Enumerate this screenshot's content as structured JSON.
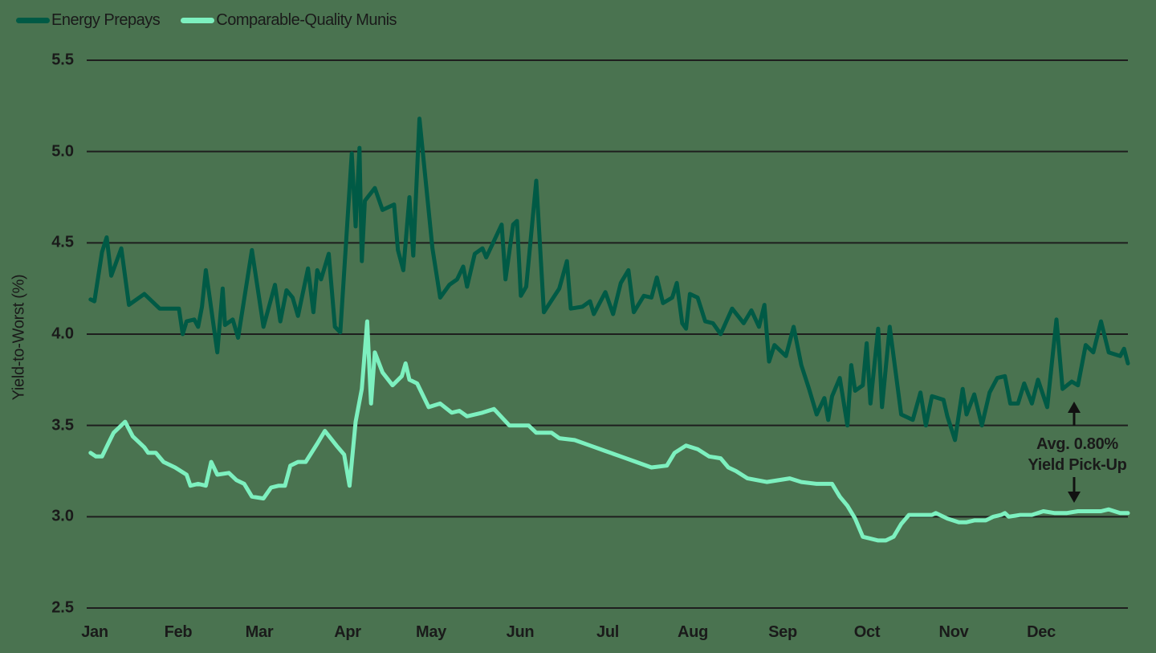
{
  "legend": {
    "items": [
      {
        "label": "Energy Prepays",
        "color": "#005a45"
      },
      {
        "label": "Comparable-Quality Munis",
        "color": "#7df0bf"
      }
    ]
  },
  "axis": {
    "ylabel": "Yield-to-Worst (%)",
    "yticks": [
      "5.5",
      "5.0",
      "4.5",
      "4.0",
      "3.5",
      "3.0",
      "2.5"
    ],
    "xticks": [
      "Jan",
      "Feb",
      "Mar",
      "Apr",
      "May",
      "Jun",
      "Jul",
      "Aug",
      "Sep",
      "Oct",
      "Nov",
      "Dec"
    ]
  },
  "annotation": {
    "line1": "Avg. 0.80%",
    "line2": "Yield Pick-Up"
  },
  "colors": {
    "background": "#4a7350",
    "grid": "#1e1e1e",
    "energy_prepays": "#005a45",
    "munis": "#7df0bf"
  },
  "chart_data": {
    "type": "line",
    "title": "",
    "xlabel": "",
    "ylabel": "Yield-to-Worst (%)",
    "ylim": [
      2.5,
      5.5
    ],
    "yticks": [
      2.5,
      3.0,
      3.5,
      4.0,
      4.5,
      5.0,
      5.5
    ],
    "grid": "horizontal",
    "legend_position": "top-left",
    "x_categories": [
      "Jan",
      "Feb",
      "Mar",
      "Apr",
      "May",
      "Jun",
      "Jul",
      "Aug",
      "Sep",
      "Oct",
      "Nov",
      "Dec"
    ],
    "x_note": "x values are fractional months (0 = start of Jan, 12 = end of Dec)",
    "annotations": [
      {
        "text": "Avg. 0.80% Yield Pick-Up",
        "x": 11.2,
        "arrows": [
          "up to Energy Prepays",
          "down to Munis"
        ]
      }
    ],
    "series": [
      {
        "name": "Energy Prepays",
        "color": "#005a45",
        "points": [
          [
            0.05,
            4.19
          ],
          [
            0.1,
            4.18
          ],
          [
            0.2,
            4.45
          ],
          [
            0.26,
            4.53
          ],
          [
            0.32,
            4.32
          ],
          [
            0.45,
            4.47
          ],
          [
            0.55,
            4.16
          ],
          [
            0.75,
            4.22
          ],
          [
            0.95,
            4.14
          ],
          [
            1.1,
            4.14
          ],
          [
            1.2,
            4.14
          ],
          [
            1.25,
            4.0
          ],
          [
            1.3,
            4.07
          ],
          [
            1.4,
            4.08
          ],
          [
            1.45,
            4.04
          ],
          [
            1.5,
            4.15
          ],
          [
            1.55,
            4.35
          ],
          [
            1.6,
            4.2
          ],
          [
            1.7,
            3.9
          ],
          [
            1.77,
            4.25
          ],
          [
            1.8,
            4.05
          ],
          [
            1.9,
            4.08
          ],
          [
            1.97,
            3.98
          ],
          [
            2.15,
            4.46
          ],
          [
            2.3,
            4.04
          ],
          [
            2.45,
            4.27
          ],
          [
            2.52,
            4.07
          ],
          [
            2.6,
            4.24
          ],
          [
            2.68,
            4.2
          ],
          [
            2.75,
            4.1
          ],
          [
            2.88,
            4.36
          ],
          [
            2.95,
            4.12
          ],
          [
            3.0,
            4.35
          ],
          [
            3.05,
            4.3
          ],
          [
            3.15,
            4.44
          ],
          [
            3.23,
            4.04
          ],
          [
            3.3,
            4.01
          ],
          [
            3.45,
            4.99
          ],
          [
            3.5,
            4.59
          ],
          [
            3.55,
            5.02
          ],
          [
            3.58,
            4.4
          ],
          [
            3.62,
            4.73
          ],
          [
            3.75,
            4.8
          ],
          [
            3.85,
            4.68
          ],
          [
            4.0,
            4.71
          ],
          [
            4.05,
            4.46
          ],
          [
            4.12,
            4.35
          ],
          [
            4.2,
            4.75
          ],
          [
            4.25,
            4.43
          ],
          [
            4.33,
            5.18
          ],
          [
            4.5,
            4.47
          ],
          [
            4.6,
            4.2
          ],
          [
            4.72,
            4.27
          ],
          [
            4.82,
            4.3
          ],
          [
            4.9,
            4.37
          ],
          [
            4.95,
            4.26
          ],
          [
            5.05,
            4.44
          ],
          [
            5.15,
            4.47
          ],
          [
            5.2,
            4.42
          ],
          [
            5.4,
            4.6
          ],
          [
            5.45,
            4.3
          ],
          [
            5.55,
            4.6
          ],
          [
            5.6,
            4.62
          ],
          [
            5.65,
            4.21
          ],
          [
            5.72,
            4.26
          ],
          [
            5.85,
            4.84
          ],
          [
            5.95,
            4.12
          ],
          [
            6.15,
            4.25
          ],
          [
            6.25,
            4.4
          ],
          [
            6.3,
            4.14
          ],
          [
            6.45,
            4.15
          ],
          [
            6.55,
            4.18
          ],
          [
            6.6,
            4.11
          ],
          [
            6.75,
            4.23
          ],
          [
            6.85,
            4.11
          ],
          [
            6.95,
            4.28
          ],
          [
            7.05,
            4.35
          ],
          [
            7.12,
            4.12
          ],
          [
            7.25,
            4.21
          ],
          [
            7.35,
            4.2
          ],
          [
            7.42,
            4.31
          ],
          [
            7.5,
            4.17
          ],
          [
            7.62,
            4.2
          ],
          [
            7.68,
            4.28
          ],
          [
            7.75,
            4.06
          ],
          [
            7.8,
            4.03
          ],
          [
            7.85,
            4.22
          ],
          [
            7.95,
            4.2
          ],
          [
            8.05,
            4.07
          ],
          [
            8.15,
            4.06
          ],
          [
            8.25,
            4.0
          ],
          [
            8.4,
            4.14
          ],
          [
            8.55,
            4.06
          ],
          [
            8.65,
            4.13
          ],
          [
            8.75,
            4.04
          ],
          [
            8.82,
            4.16
          ],
          [
            8.88,
            3.85
          ],
          [
            8.95,
            3.94
          ],
          [
            9.1,
            3.88
          ],
          [
            9.2,
            4.04
          ],
          [
            9.3,
            3.83
          ],
          [
            9.4,
            3.7
          ],
          [
            9.5,
            3.56
          ],
          [
            9.6,
            3.65
          ],
          [
            9.65,
            3.53
          ],
          [
            9.7,
            3.66
          ],
          [
            9.8,
            3.76
          ],
          [
            9.9,
            3.5
          ],
          [
            9.95,
            3.83
          ],
          [
            10.0,
            3.69
          ],
          [
            10.1,
            3.72
          ],
          [
            10.15,
            3.95
          ],
          [
            10.2,
            3.62
          ],
          [
            10.3,
            4.03
          ],
          [
            10.35,
            3.6
          ],
          [
            10.45,
            4.04
          ],
          [
            10.6,
            3.56
          ],
          [
            10.75,
            3.53
          ],
          [
            10.85,
            3.68
          ],
          [
            10.92,
            3.5
          ],
          [
            11.0,
            3.66
          ],
          [
            11.15,
            3.64
          ],
          [
            11.2,
            3.55
          ],
          [
            11.3,
            3.42
          ],
          [
            11.4,
            3.7
          ],
          [
            11.45,
            3.56
          ],
          [
            11.55,
            3.67
          ],
          [
            11.65,
            3.5
          ],
          [
            11.75,
            3.68
          ],
          [
            11.85,
            3.76
          ],
          [
            11.95,
            3.77
          ],
          [
            12.02,
            3.62
          ],
          [
            12.12,
            3.62
          ],
          [
            12.2,
            3.73
          ],
          [
            12.3,
            3.62
          ],
          [
            12.38,
            3.75
          ],
          [
            12.5,
            3.6
          ],
          [
            12.62,
            4.08
          ],
          [
            12.7,
            3.7
          ],
          [
            12.82,
            3.74
          ],
          [
            12.9,
            3.72
          ],
          [
            13.0,
            3.94
          ],
          [
            13.1,
            3.9
          ],
          [
            13.2,
            4.07
          ],
          [
            13.3,
            3.9
          ],
          [
            13.45,
            3.88
          ],
          [
            13.5,
            3.92
          ],
          [
            13.55,
            3.84
          ]
        ]
      },
      {
        "name": "Comparable-Quality Munis",
        "color": "#7df0bf",
        "points": [
          [
            0.05,
            3.35
          ],
          [
            0.12,
            3.33
          ],
          [
            0.2,
            3.33
          ],
          [
            0.28,
            3.4
          ],
          [
            0.35,
            3.46
          ],
          [
            0.5,
            3.52
          ],
          [
            0.6,
            3.44
          ],
          [
            0.75,
            3.38
          ],
          [
            0.8,
            3.35
          ],
          [
            0.9,
            3.35
          ],
          [
            1.0,
            3.3
          ],
          [
            1.15,
            3.27
          ],
          [
            1.3,
            3.23
          ],
          [
            1.35,
            3.17
          ],
          [
            1.45,
            3.18
          ],
          [
            1.55,
            3.17
          ],
          [
            1.62,
            3.3
          ],
          [
            1.7,
            3.23
          ],
          [
            1.85,
            3.24
          ],
          [
            1.95,
            3.2
          ],
          [
            2.05,
            3.18
          ],
          [
            2.15,
            3.11
          ],
          [
            2.3,
            3.1
          ],
          [
            2.4,
            3.16
          ],
          [
            2.5,
            3.17
          ],
          [
            2.58,
            3.17
          ],
          [
            2.65,
            3.28
          ],
          [
            2.75,
            3.3
          ],
          [
            2.85,
            3.3
          ],
          [
            3.0,
            3.4
          ],
          [
            3.1,
            3.47
          ],
          [
            3.25,
            3.39
          ],
          [
            3.35,
            3.34
          ],
          [
            3.42,
            3.17
          ],
          [
            3.5,
            3.52
          ],
          [
            3.58,
            3.7
          ],
          [
            3.65,
            4.07
          ],
          [
            3.7,
            3.62
          ],
          [
            3.75,
            3.9
          ],
          [
            3.85,
            3.79
          ],
          [
            3.98,
            3.72
          ],
          [
            4.1,
            3.77
          ],
          [
            4.15,
            3.84
          ],
          [
            4.2,
            3.75
          ],
          [
            4.3,
            3.73
          ],
          [
            4.45,
            3.6
          ],
          [
            4.6,
            3.62
          ],
          [
            4.75,
            3.57
          ],
          [
            4.85,
            3.58
          ],
          [
            4.95,
            3.55
          ],
          [
            5.15,
            3.57
          ],
          [
            5.3,
            3.59
          ],
          [
            5.5,
            3.5
          ],
          [
            5.75,
            3.5
          ],
          [
            5.85,
            3.46
          ],
          [
            6.05,
            3.46
          ],
          [
            6.15,
            3.43
          ],
          [
            6.35,
            3.42
          ],
          [
            6.55,
            3.39
          ],
          [
            6.75,
            3.36
          ],
          [
            6.95,
            3.33
          ],
          [
            7.15,
            3.3
          ],
          [
            7.35,
            3.27
          ],
          [
            7.55,
            3.28
          ],
          [
            7.65,
            3.35
          ],
          [
            7.8,
            3.39
          ],
          [
            7.95,
            3.37
          ],
          [
            8.1,
            3.33
          ],
          [
            8.25,
            3.32
          ],
          [
            8.35,
            3.27
          ],
          [
            8.45,
            3.25
          ],
          [
            8.6,
            3.21
          ],
          [
            8.85,
            3.19
          ],
          [
            9.0,
            3.2
          ],
          [
            9.15,
            3.21
          ],
          [
            9.3,
            3.19
          ],
          [
            9.5,
            3.18
          ],
          [
            9.7,
            3.18
          ],
          [
            9.8,
            3.11
          ],
          [
            9.9,
            3.06
          ],
          [
            10.0,
            2.99
          ],
          [
            10.1,
            2.89
          ],
          [
            10.2,
            2.88
          ],
          [
            10.3,
            2.87
          ],
          [
            10.4,
            2.87
          ],
          [
            10.5,
            2.89
          ],
          [
            10.6,
            2.96
          ],
          [
            10.7,
            3.01
          ],
          [
            11.0,
            3.01
          ],
          [
            11.05,
            3.02
          ],
          [
            11.2,
            2.99
          ],
          [
            11.35,
            2.97
          ],
          [
            11.45,
            2.97
          ],
          [
            11.55,
            2.98
          ],
          [
            11.7,
            2.98
          ],
          [
            11.8,
            3.0
          ],
          [
            11.9,
            3.01
          ],
          [
            11.95,
            3.02
          ],
          [
            12.0,
            3.0
          ],
          [
            12.15,
            3.01
          ],
          [
            12.3,
            3.01
          ],
          [
            12.45,
            3.03
          ],
          [
            12.6,
            3.02
          ],
          [
            12.75,
            3.02
          ],
          [
            12.9,
            3.03
          ],
          [
            13.05,
            3.03
          ],
          [
            13.2,
            3.03
          ],
          [
            13.3,
            3.04
          ],
          [
            13.45,
            3.02
          ],
          [
            13.55,
            3.02
          ]
        ]
      }
    ]
  }
}
